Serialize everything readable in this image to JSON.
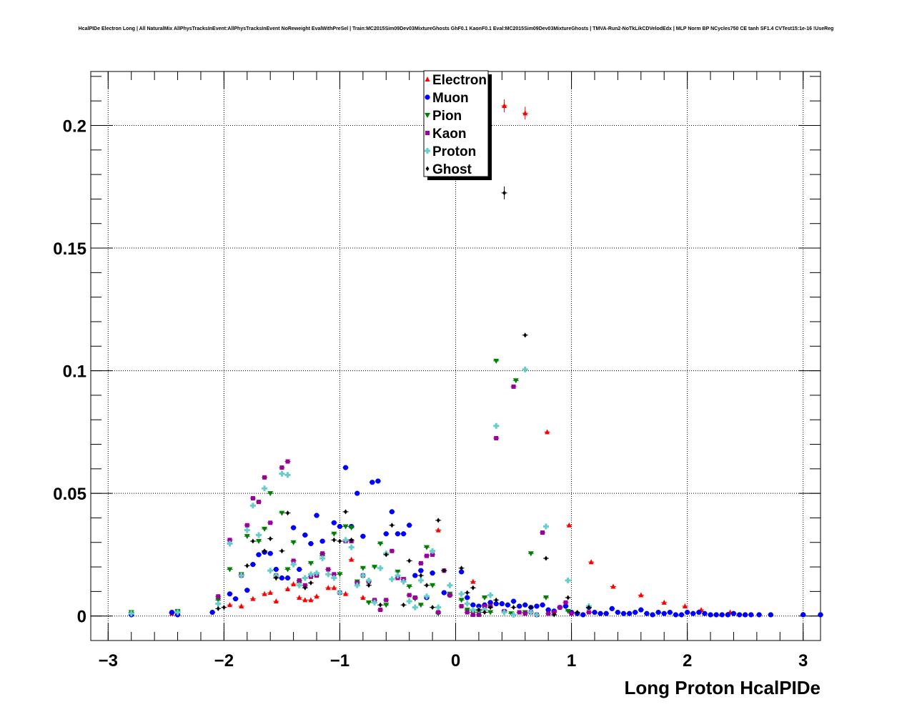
{
  "chart_data": {
    "type": "scatter",
    "title": "HcalPIDe Electron Long | All NaturalMix AllPhysTracksInEvent:AllPhysTracksInEvent NoReweight EvalWithPreSel | Train:MC2015Sim09Dev03MixtureGhosts GhF0.1 KaonF0.1 Eval:MC2015Sim09Dev03MixtureGhosts | TMVA-Run2-NoTkLikCDVelodEdx | MLP Norm BP NCycles750 CE tanh SF1.4 CVTest15:1e-16 !UseReg",
    "xlabel": "Long Proton HcalPIDe",
    "ylabel": "",
    "xlim": [
      -3.15,
      3.15
    ],
    "ylim": [
      -0.01,
      0.222
    ],
    "x_ticks": [
      -3,
      -2,
      -1,
      0,
      1,
      2,
      3
    ],
    "x_tick_labels": [
      "−3",
      "−2",
      "−1",
      "0",
      "1",
      "2",
      "3"
    ],
    "y_ticks": [
      0,
      0.05,
      0.1,
      0.15,
      0.2
    ],
    "y_tick_labels": [
      "0",
      "0.05",
      "0.1",
      "0.15",
      "0.2"
    ],
    "grid": true,
    "legend_position": "top-center",
    "series": [
      {
        "name": "Electron",
        "color": "#ff0000",
        "marker": "triangle-up",
        "x": [
          -2.45,
          -1.95,
          -1.85,
          -1.75,
          -1.65,
          -1.6,
          -1.55,
          -1.45,
          -1.4,
          -1.35,
          -1.3,
          -1.25,
          -1.2,
          -1.1,
          -1.05,
          -0.95,
          -0.9,
          -0.8,
          -0.75,
          -0.15,
          0.15,
          0.42,
          0.6,
          0.79,
          0.98,
          1.17,
          1.36,
          1.6,
          1.8,
          1.98,
          2.12,
          2.37
        ],
        "y": [
          0.001,
          0.0045,
          0.004,
          0.007,
          0.009,
          0.0095,
          0.006,
          0.011,
          0.013,
          0.0075,
          0.0065,
          0.0065,
          0.008,
          0.0115,
          0.0115,
          0.009,
          0.023,
          0.0075,
          0.0145,
          0.035,
          0.014,
          0.208,
          0.205,
          0.075,
          0.037,
          0.022,
          0.012,
          0.0085,
          0.0055,
          0.004,
          0.0025,
          0.0015
        ]
      },
      {
        "name": "Muon",
        "color": "#0000ff",
        "marker": "circle",
        "x": [
          -2.8,
          -2.45,
          -2.4,
          -2.1,
          -1.95,
          -1.9,
          -1.8,
          -1.75,
          -1.7,
          -1.65,
          -1.6,
          -1.55,
          -1.5,
          -1.45,
          -1.4,
          -1.35,
          -1.3,
          -1.25,
          -1.2,
          -1.15,
          -1.05,
          -1.0,
          -0.95,
          -0.9,
          -0.85,
          -0.8,
          -0.72,
          -0.67,
          -0.6,
          -0.55,
          -0.5,
          -0.45,
          -0.4,
          -0.35,
          -0.3,
          -0.25,
          -0.2,
          -0.1,
          -0.05,
          0.05,
          0.1,
          0.15,
          0.2,
          0.25,
          0.3,
          0.35,
          0.4,
          0.45,
          0.5,
          0.55,
          0.6,
          0.65,
          0.7,
          0.75,
          0.8,
          0.85,
          0.9,
          0.95,
          1.0,
          1.05,
          1.1,
          1.15,
          1.2,
          1.25,
          1.3,
          1.35,
          1.4,
          1.45,
          1.5,
          1.55,
          1.6,
          1.65,
          1.7,
          1.75,
          1.8,
          1.85,
          1.9,
          1.95,
          2.0,
          2.05,
          2.1,
          2.15,
          2.2,
          2.25,
          2.3,
          2.35,
          2.4,
          2.45,
          2.5,
          2.55,
          2.62,
          2.72,
          3.0,
          3.15
        ],
        "y": [
          0.0005,
          0.0015,
          0.0005,
          0.0015,
          0.009,
          0.007,
          0.0105,
          0.021,
          0.025,
          0.026,
          0.0255,
          0.019,
          0.0155,
          0.0155,
          0.036,
          0.019,
          0.033,
          0.0295,
          0.041,
          0.0305,
          0.038,
          0.0365,
          0.0605,
          0.0365,
          0.05,
          0.0325,
          0.0545,
          0.055,
          0.0335,
          0.0425,
          0.0335,
          0.0335,
          0.037,
          0.0165,
          0.0185,
          0.0075,
          0.0175,
          0.0095,
          0.0085,
          0.018,
          0.0075,
          0.0045,
          0.004,
          0.0045,
          0.0055,
          0.005,
          0.005,
          0.0045,
          0.006,
          0.004,
          0.0045,
          0.0035,
          0.004,
          0.0045,
          0.0025,
          0.002,
          0.0035,
          0.004,
          0.0015,
          0.001,
          0.0005,
          0.0035,
          0.0015,
          0.001,
          0.001,
          0.003,
          0.0015,
          0.001,
          0.001,
          0.0015,
          0.0025,
          0.001,
          0.0005,
          0.0015,
          0.001,
          0.0015,
          0.0005,
          0.0005,
          0.0015,
          0.001,
          0.0015,
          0.001,
          0.0005,
          0.0005,
          0.0005,
          0.0005,
          0.001,
          0.0005,
          0.0005,
          0.0005,
          0.0005,
          0.0005,
          0.0005,
          0.0005
        ]
      },
      {
        "name": "Pion",
        "color": "#008000",
        "marker": "triangle-down",
        "x": [
          -2.8,
          -2.4,
          -2.05,
          -1.95,
          -1.85,
          -1.8,
          -1.7,
          -1.65,
          -1.6,
          -1.55,
          -1.5,
          -1.45,
          -1.4,
          -1.35,
          -1.25,
          -1.15,
          -1.05,
          -1.0,
          -0.95,
          -0.9,
          -0.85,
          -0.8,
          -0.75,
          -0.7,
          -0.65,
          -0.6,
          -0.5,
          -0.45,
          -0.4,
          -0.35,
          -0.3,
          -0.25,
          -0.2,
          -0.15,
          -0.05,
          0.05,
          0.1,
          0.15,
          0.2,
          0.25,
          0.3,
          0.35,
          0.42,
          0.48,
          0.52,
          0.6,
          0.65,
          0.78,
          0.97
        ],
        "y": [
          0.0015,
          0.002,
          0.0065,
          0.019,
          0.017,
          0.0325,
          0.0305,
          0.0355,
          0.05,
          0.0155,
          0.042,
          0.019,
          0.03,
          0.0135,
          0.0215,
          0.0245,
          0.0335,
          0.017,
          0.0365,
          0.036,
          0.014,
          0.0195,
          0.0055,
          0.02,
          0.0295,
          0.0045,
          0.018,
          0.015,
          0.012,
          0.007,
          0.0045,
          0.028,
          0.0125,
          0.001,
          0.009,
          0.0065,
          0.0025,
          0.0015,
          0.0015,
          0.0075,
          0.0015,
          0.104,
          0.0015,
          0.001,
          0.096,
          0.0015,
          0.0255,
          0.0075,
          0.002
        ]
      },
      {
        "name": "Kaon",
        "color": "#990099",
        "marker": "square",
        "x": [
          -2.05,
          -1.95,
          -1.85,
          -1.8,
          -1.75,
          -1.7,
          -1.65,
          -1.6,
          -1.55,
          -1.5,
          -1.45,
          -1.4,
          -1.35,
          -1.3,
          -1.25,
          -1.2,
          -1.15,
          -1.1,
          -1.05,
          -1.0,
          -0.95,
          -0.9,
          -0.85,
          -0.8,
          -0.75,
          -0.7,
          -0.65,
          -0.6,
          -0.55,
          -0.5,
          -0.45,
          -0.4,
          -0.35,
          -0.3,
          -0.25,
          -0.2,
          -0.15,
          -0.1,
          -0.05,
          0.05,
          0.1,
          0.15,
          0.2,
          0.25,
          0.3,
          0.35,
          0.42,
          0.5,
          0.55,
          0.6,
          0.65,
          0.7,
          0.75,
          0.8,
          0.85,
          0.9,
          0.95,
          1.0,
          1.15
        ],
        "y": [
          0.008,
          0.031,
          0.0165,
          0.037,
          0.048,
          0.0465,
          0.0565,
          0.038,
          0.0165,
          0.0605,
          0.063,
          0.0225,
          0.0145,
          0.0125,
          0.016,
          0.0165,
          0.0255,
          0.019,
          0.017,
          0.0095,
          0.0305,
          0.0305,
          0.0135,
          0.0165,
          0.014,
          0.0065,
          0.0025,
          0.0065,
          0.0265,
          0.0155,
          0.015,
          0.0085,
          0.0075,
          0.0215,
          0.0245,
          0.025,
          0.0015,
          0.0185,
          0.0085,
          0.004,
          0.0015,
          0.0005,
          0.0005,
          0.004,
          0.004,
          0.0725,
          0.002,
          0.0935,
          0.0015,
          0.001,
          0.0015,
          0.0005,
          0.034,
          0.001,
          0.0015,
          0.0035,
          0.0055,
          0.001,
          0.0015
        ]
      },
      {
        "name": "Proton",
        "color": "#66cccc",
        "marker": "cross",
        "x": [
          -2.8,
          -2.4,
          -2.05,
          -1.95,
          -1.85,
          -1.8,
          -1.75,
          -1.7,
          -1.65,
          -1.6,
          -1.55,
          -1.5,
          -1.45,
          -1.4,
          -1.35,
          -1.3,
          -1.25,
          -1.2,
          -1.15,
          -1.1,
          -1.05,
          -1.0,
          -0.95,
          -0.9,
          -0.85,
          -0.8,
          -0.75,
          -0.7,
          -0.65,
          -0.6,
          -0.55,
          -0.5,
          -0.45,
          -0.4,
          -0.35,
          -0.3,
          -0.25,
          -0.2,
          -0.15,
          -0.05,
          0.05,
          0.1,
          0.15,
          0.2,
          0.25,
          0.3,
          0.35,
          0.42,
          0.5,
          0.6,
          0.65,
          0.7,
          0.78,
          0.97,
          1.15
        ],
        "y": [
          0.001,
          0.0015,
          0.005,
          0.0295,
          0.0165,
          0.035,
          0.045,
          0.033,
          0.052,
          0.0185,
          0.0165,
          0.058,
          0.0575,
          0.021,
          0.0125,
          0.0155,
          0.017,
          0.0175,
          0.0235,
          0.017,
          0.0155,
          0.0095,
          0.031,
          0.028,
          0.0125,
          0.0165,
          0.0145,
          0.0055,
          0.0195,
          0.0255,
          0.015,
          0.0165,
          0.014,
          0.006,
          0.0035,
          0.0145,
          0.008,
          0.0265,
          0.0035,
          0.0125,
          0.009,
          0.005,
          0.0025,
          0.0025,
          0.0025,
          0.0085,
          0.0775,
          0.0015,
          0.0005,
          0.1005,
          0.0015,
          0.0005,
          0.0365,
          0.0145,
          0.004
        ]
      },
      {
        "name": "Ghost",
        "color": "#000000",
        "marker": "diamond",
        "x": [
          -2.05,
          -2.0,
          -1.8,
          -1.75,
          -1.65,
          -1.6,
          -1.55,
          -1.5,
          -1.45,
          -1.3,
          -1.25,
          -1.05,
          -1.0,
          -0.95,
          -0.9,
          -0.75,
          -0.65,
          -0.6,
          -0.55,
          -0.45,
          -0.4,
          -0.3,
          -0.25,
          -0.2,
          -0.15,
          -0.1,
          0.05,
          0.1,
          0.15,
          0.2,
          0.25,
          0.3,
          0.35,
          0.42,
          0.5,
          0.6,
          0.65,
          0.78,
          0.85,
          0.97,
          1.05,
          1.15
        ],
        "y": [
          0.003,
          0.0035,
          0.0205,
          0.0305,
          0.0265,
          0.0315,
          0.0155,
          0.0265,
          0.042,
          0.0115,
          0.0135,
          0.031,
          0.0305,
          0.0425,
          0.031,
          0.0125,
          0.0045,
          0.025,
          0.037,
          0.0045,
          0.0225,
          0.0165,
          0.0125,
          0.0035,
          0.039,
          0.0185,
          0.0195,
          0.0095,
          0.0115,
          0.0025,
          0.0015,
          0.0035,
          0.0065,
          0.1725,
          0.0035,
          0.1145,
          0.0035,
          0.0235,
          0.0005,
          0.0075,
          0.0015,
          0.0035
        ]
      }
    ]
  }
}
